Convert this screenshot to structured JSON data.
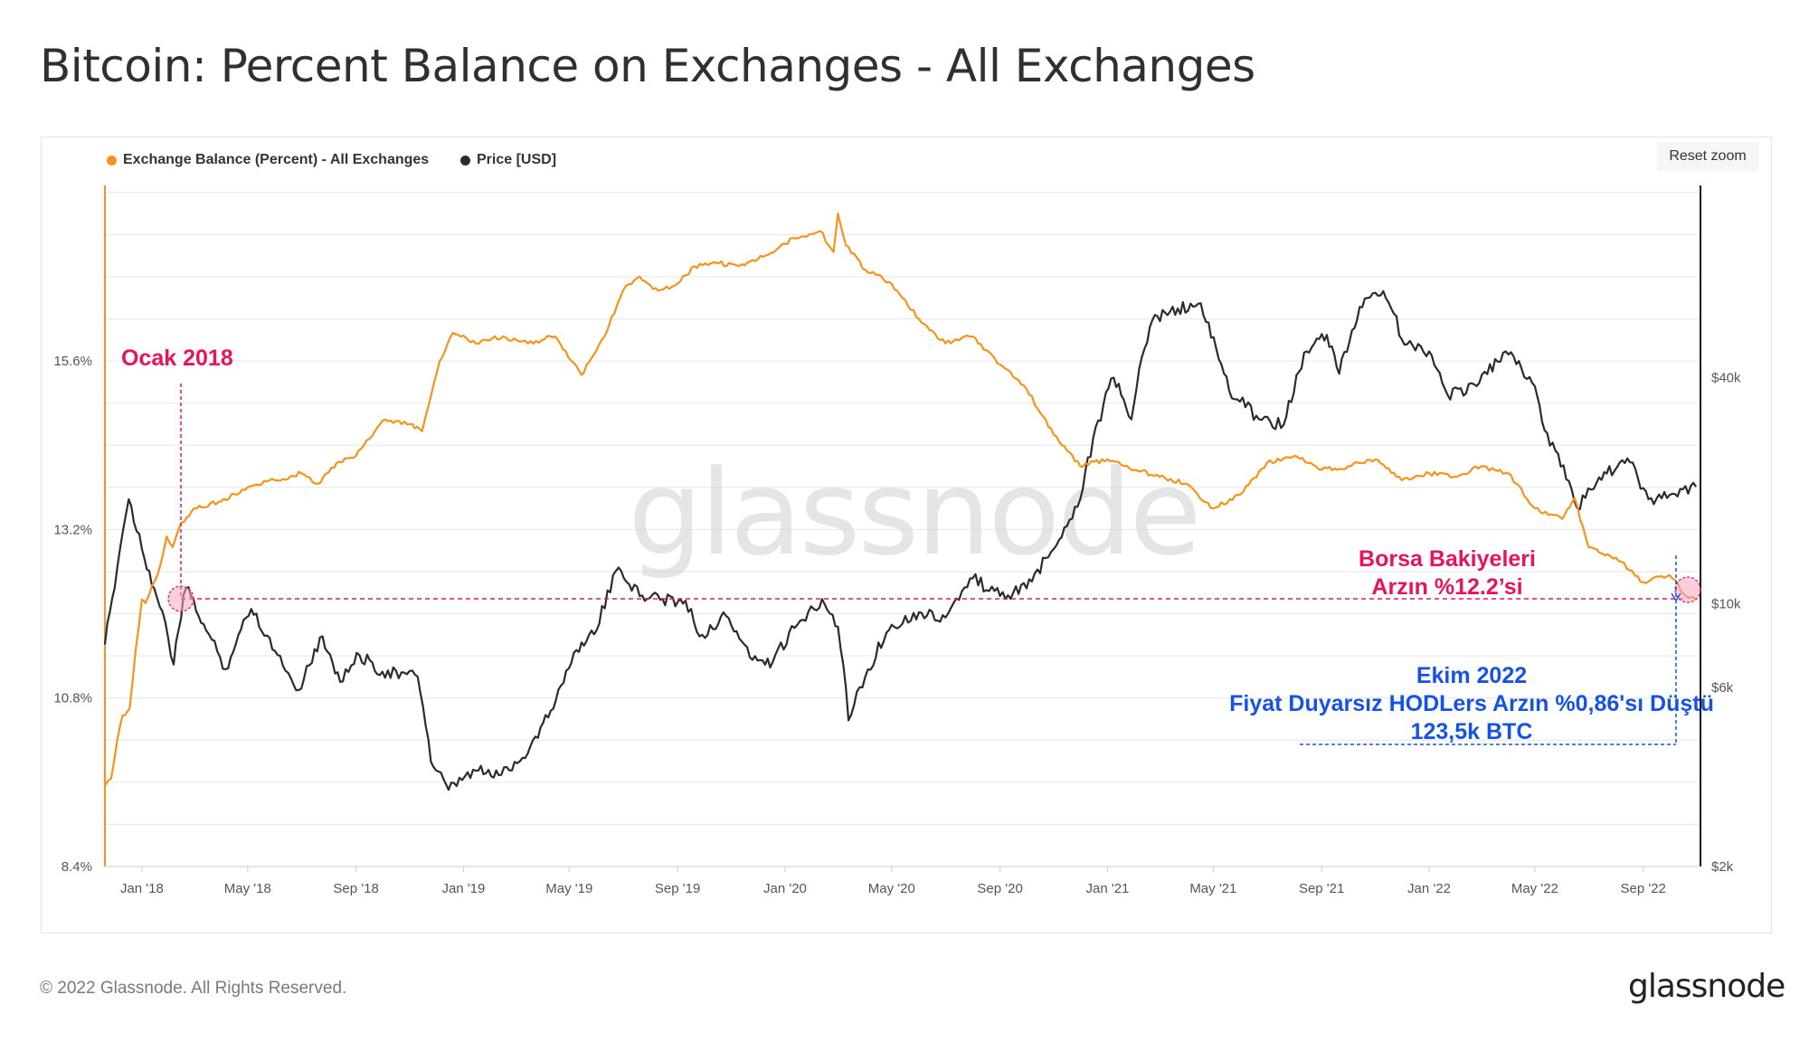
{
  "header": {
    "title": "Bitcoin: Percent Balance on Exchanges - All Exchanges"
  },
  "controls": {
    "reset_zoom": "Reset zoom"
  },
  "watermark": "glassnode",
  "footer": {
    "copyright": "© 2022 Glassnode. All Rights Reserved.",
    "logo": "glassnode"
  },
  "colors": {
    "exchange_balance": "#f7931a",
    "price": "#2b2b2b",
    "annotation_pink": "#e8135f",
    "annotation_blue": "#1553e8",
    "grid": "#e6e6e6"
  },
  "annotations": {
    "ocak": "Ocak 2018",
    "borsa_line1": "Borsa Bakiyeleri",
    "borsa_line2": "Arzın %12.2’si",
    "ekim_line1": "Ekim 2022",
    "ekim_line2": "Fiyat Duyarsız HODLers Arzın %0,86'sı Düştü",
    "ekim_line3": "123,5k BTC"
  },
  "chart_data": {
    "type": "line",
    "x_axis": {
      "type": "datetime",
      "range": [
        "2017-11-20",
        "2022-11-05"
      ],
      "tick_labels": [
        "Jan '18",
        "May '18",
        "Sep '18",
        "Jan '19",
        "May '19",
        "Sep '19",
        "Jan '20",
        "May '20",
        "Sep '20",
        "Jan '21",
        "May '21",
        "Sep '21",
        "Jan '22",
        "May '22",
        "Sep '22"
      ]
    },
    "y_left": {
      "unit": "percent",
      "ylim": [
        8.4,
        18.1
      ],
      "ticks": [
        "8.4%",
        "10.8%",
        "13.2%",
        "15.6%"
      ],
      "tick_values": [
        8.4,
        10.8,
        13.2,
        15.6
      ]
    },
    "y_right": {
      "unit": "USD",
      "scale": "log",
      "ylim": [
        2000,
        130000
      ],
      "ticks": [
        "$2k",
        "$6k",
        "$10k",
        "$40k"
      ],
      "tick_values": [
        2000,
        6000,
        10000,
        40000
      ]
    },
    "legend": {
      "position": "top-left"
    },
    "series": [
      {
        "name": "Exchange Balance (Percent) - All Exchanges",
        "color": "#f7931a",
        "axis": "left",
        "points": [
          [
            "2017-11-20",
            9.55
          ],
          [
            "2017-11-27",
            9.65
          ],
          [
            "2017-12-04",
            10.2
          ],
          [
            "2017-12-10",
            10.55
          ],
          [
            "2017-12-18",
            10.65
          ],
          [
            "2017-12-25",
            11.5
          ],
          [
            "2018-01-01",
            12.2
          ],
          [
            "2018-01-05",
            12.15
          ],
          [
            "2018-01-10",
            12.3
          ],
          [
            "2018-01-15",
            12.45
          ],
          [
            "2018-01-22",
            12.7
          ],
          [
            "2018-01-29",
            13.1
          ],
          [
            "2018-02-05",
            12.95
          ],
          [
            "2018-02-15",
            13.3
          ],
          [
            "2018-03-01",
            13.5
          ],
          [
            "2018-04-01",
            13.6
          ],
          [
            "2018-05-01",
            13.8
          ],
          [
            "2018-06-01",
            13.9
          ],
          [
            "2018-07-01",
            14.0
          ],
          [
            "2018-07-20",
            13.85
          ],
          [
            "2018-08-10",
            14.15
          ],
          [
            "2018-09-01",
            14.25
          ],
          [
            "2018-10-01",
            14.75
          ],
          [
            "2018-11-01",
            14.7
          ],
          [
            "2018-11-15",
            14.6
          ],
          [
            "2018-11-22",
            14.95
          ],
          [
            "2018-12-05",
            15.6
          ],
          [
            "2018-12-20",
            16.0
          ],
          [
            "2019-01-15",
            15.85
          ],
          [
            "2019-02-15",
            15.95
          ],
          [
            "2019-03-15",
            15.85
          ],
          [
            "2019-04-15",
            15.95
          ],
          [
            "2019-05-15",
            15.4
          ],
          [
            "2019-06-01",
            15.75
          ],
          [
            "2019-06-15",
            16.1
          ],
          [
            "2019-07-01",
            16.6
          ],
          [
            "2019-07-20",
            16.8
          ],
          [
            "2019-08-10",
            16.6
          ],
          [
            "2019-09-01",
            16.7
          ],
          [
            "2019-09-20",
            16.95
          ],
          [
            "2019-10-15",
            17.0
          ],
          [
            "2019-11-10",
            16.95
          ],
          [
            "2019-12-10",
            17.1
          ],
          [
            "2020-01-10",
            17.35
          ],
          [
            "2020-02-10",
            17.45
          ],
          [
            "2020-02-25",
            17.15
          ],
          [
            "2020-03-01",
            17.7
          ],
          [
            "2020-03-10",
            17.25
          ],
          [
            "2020-04-01",
            16.9
          ],
          [
            "2020-05-01",
            16.7
          ],
          [
            "2020-06-01",
            16.2
          ],
          [
            "2020-07-01",
            15.85
          ],
          [
            "2020-08-01",
            15.95
          ],
          [
            "2020-09-01",
            15.55
          ],
          [
            "2020-10-01",
            15.2
          ],
          [
            "2020-11-01",
            14.55
          ],
          [
            "2020-12-01",
            14.1
          ],
          [
            "2021-01-01",
            14.2
          ],
          [
            "2021-02-01",
            14.05
          ],
          [
            "2021-03-01",
            13.95
          ],
          [
            "2021-04-01",
            13.85
          ],
          [
            "2021-05-01",
            13.5
          ],
          [
            "2021-06-01",
            13.7
          ],
          [
            "2021-07-01",
            14.15
          ],
          [
            "2021-08-01",
            14.25
          ],
          [
            "2021-09-01",
            14.05
          ],
          [
            "2021-10-01",
            14.1
          ],
          [
            "2021-11-01",
            14.2
          ],
          [
            "2021-12-01",
            13.9
          ],
          [
            "2022-01-01",
            14.0
          ],
          [
            "2022-02-01",
            13.95
          ],
          [
            "2022-03-01",
            14.1
          ],
          [
            "2022-04-01",
            14.0
          ],
          [
            "2022-05-01",
            13.5
          ],
          [
            "2022-06-01",
            13.35
          ],
          [
            "2022-06-15",
            13.65
          ],
          [
            "2022-07-01",
            12.95
          ],
          [
            "2022-08-01",
            12.8
          ],
          [
            "2022-09-01",
            12.45
          ],
          [
            "2022-10-01",
            12.55
          ],
          [
            "2022-10-20",
            12.25
          ],
          [
            "2022-10-31",
            12.2
          ]
        ]
      },
      {
        "name": "Price [USD]",
        "color": "#2b2b2b",
        "axis": "right",
        "points": [
          [
            "2017-11-20",
            7800
          ],
          [
            "2017-12-01",
            11000
          ],
          [
            "2017-12-17",
            19000
          ],
          [
            "2018-01-01",
            14000
          ],
          [
            "2018-01-15",
            11000
          ],
          [
            "2018-02-06",
            6900
          ],
          [
            "2018-02-20",
            11000
          ],
          [
            "2018-03-15",
            8500
          ],
          [
            "2018-04-06",
            6700
          ],
          [
            "2018-05-05",
            9700
          ],
          [
            "2018-06-01",
            7500
          ],
          [
            "2018-06-28",
            5900
          ],
          [
            "2018-07-25",
            8200
          ],
          [
            "2018-08-14",
            6200
          ],
          [
            "2018-09-05",
            7300
          ],
          [
            "2018-10-01",
            6600
          ],
          [
            "2018-11-10",
            6400
          ],
          [
            "2018-11-25",
            3800
          ],
          [
            "2018-12-15",
            3200
          ],
          [
            "2019-01-15",
            3600
          ],
          [
            "2019-02-10",
            3500
          ],
          [
            "2019-03-15",
            4000
          ],
          [
            "2019-04-10",
            5200
          ],
          [
            "2019-05-15",
            7900
          ],
          [
            "2019-06-01",
            8500
          ],
          [
            "2019-06-26",
            12500
          ],
          [
            "2019-07-20",
            10500
          ],
          [
            "2019-08-15",
            10300
          ],
          [
            "2019-09-10",
            10200
          ],
          [
            "2019-09-26",
            8200
          ],
          [
            "2019-10-26",
            9300
          ],
          [
            "2019-11-25",
            7100
          ],
          [
            "2019-12-18",
            7000
          ],
          [
            "2020-01-15",
            8800
          ],
          [
            "2020-02-12",
            10300
          ],
          [
            "2020-03-01",
            8700
          ],
          [
            "2020-03-13",
            4900
          ],
          [
            "2020-04-01",
            6400
          ],
          [
            "2020-05-01",
            8800
          ],
          [
            "2020-06-01",
            9500
          ],
          [
            "2020-07-01",
            9200
          ],
          [
            "2020-08-01",
            11700
          ],
          [
            "2020-09-01",
            10500
          ],
          [
            "2020-10-01",
            11000
          ],
          [
            "2020-11-01",
            14000
          ],
          [
            "2020-12-01",
            19000
          ],
          [
            "2021-01-08",
            40000
          ],
          [
            "2021-01-28",
            31000
          ],
          [
            "2021-02-21",
            57000
          ],
          [
            "2021-03-13",
            60000
          ],
          [
            "2021-04-14",
            63000
          ],
          [
            "2021-05-19",
            37000
          ],
          [
            "2021-06-22",
            31000
          ],
          [
            "2021-07-20",
            30000
          ],
          [
            "2021-08-15",
            47000
          ],
          [
            "2021-09-07",
            52000
          ],
          [
            "2021-09-21",
            41000
          ],
          [
            "2021-10-20",
            65000
          ],
          [
            "2021-11-10",
            68000
          ],
          [
            "2021-12-04",
            49000
          ],
          [
            "2022-01-01",
            47000
          ],
          [
            "2022-01-22",
            36000
          ],
          [
            "2022-02-24",
            38000
          ],
          [
            "2022-03-29",
            47000
          ],
          [
            "2022-05-01",
            38000
          ],
          [
            "2022-05-12",
            29000
          ],
          [
            "2022-06-18",
            18000
          ],
          [
            "2022-07-10",
            21000
          ],
          [
            "2022-08-14",
            24400
          ],
          [
            "2022-09-07",
            19000
          ],
          [
            "2022-10-01",
            19500
          ],
          [
            "2022-10-31",
            20500
          ]
        ]
      }
    ]
  }
}
